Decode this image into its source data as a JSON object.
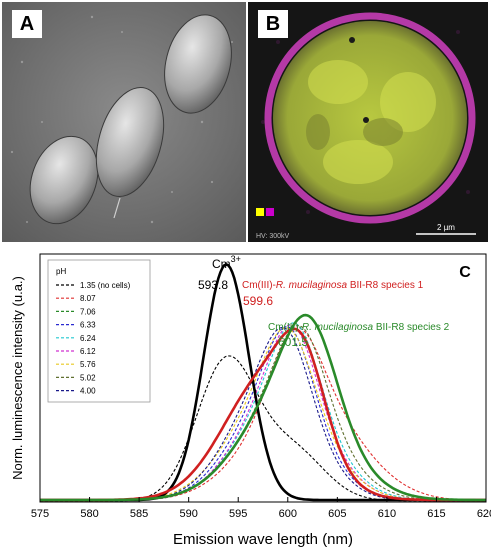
{
  "panels": {
    "a": {
      "letter": "A"
    },
    "b": {
      "letter": "B",
      "legend_swatches": [
        "#ffff00",
        "#cc00cc"
      ],
      "footer_text": "HV: 300kV",
      "scalebar_label": "2 µm"
    },
    "c": {
      "letter": "C"
    }
  },
  "colors": {
    "yellow_signal": "#c8d84a",
    "magenta_signal": "#d040c0"
  },
  "chart_data": {
    "type": "line",
    "xlabel": "Emission wave length (nm)",
    "ylabel": "Norm. luminescence intensity (u.a.)",
    "xlim": [
      575,
      620
    ],
    "ylim": [
      0,
      1.0
    ],
    "xticks": [
      575,
      580,
      585,
      590,
      595,
      600,
      605,
      610,
      615,
      620
    ],
    "legend": {
      "title": "pH",
      "position": "top-left",
      "entries": [
        {
          "label": "1.35 (no cells)",
          "color": "#000000"
        },
        {
          "label": "8.07",
          "color": "#e03030"
        },
        {
          "label": "7.06",
          "color": "#2a8a2a"
        },
        {
          "label": "6.33",
          "color": "#2a2ad0"
        },
        {
          "label": "6.24",
          "color": "#20c8d0"
        },
        {
          "label": "6.12",
          "color": "#d030d0"
        },
        {
          "label": "5.76",
          "color": "#e8c820"
        },
        {
          "label": "5.02",
          "color": "#607030"
        },
        {
          "label": "4.00",
          "color": "#1a1a8a"
        }
      ]
    },
    "annotations": [
      {
        "text": "Cm",
        "superscript": "3+",
        "value": "593.8",
        "color": "#000000"
      },
      {
        "text": "Cm(III)-",
        "italic": "R. mucilaginosa",
        "suffix": " BII-R8 species 1",
        "value": "599.6",
        "color": "#d02020"
      },
      {
        "text": "Cm(III)-",
        "italic": "R. mucilaginosa",
        "suffix": " BII-R8 species 2",
        "value": "601.5",
        "color": "#2a8a2a"
      }
    ],
    "series": [
      {
        "style": "solid",
        "color": "#000000",
        "width": 2.6,
        "components": [
          {
            "amp": 0.95,
            "center": 593.8,
            "sigma": 2.3
          }
        ],
        "baseline": 0.008
      },
      {
        "style": "solid",
        "color": "#d02020",
        "width": 2.6,
        "components": [
          {
            "amp": 0.5,
            "center": 598.0,
            "sigma": 4.4
          },
          {
            "amp": 0.3,
            "center": 601.6,
            "sigma": 2.2
          }
        ],
        "baseline": 0.008
      },
      {
        "style": "solid",
        "color": "#2a8a2a",
        "width": 2.6,
        "components": [
          {
            "amp": 0.44,
            "center": 600.4,
            "sigma": 4.8
          },
          {
            "amp": 0.33,
            "center": 602.3,
            "sigma": 2.6
          }
        ],
        "baseline": 0.008
      },
      {
        "style": "dashed",
        "color": "#000000",
        "width": 1.1,
        "components": [
          {
            "amp": 0.56,
            "center": 593.8,
            "sigma": 3.0
          },
          {
            "amp": 0.2,
            "center": 600.5,
            "sigma": 3.2
          }
        ],
        "baseline": 0.005
      },
      {
        "style": "dashed",
        "color": "#e03030",
        "width": 1.1,
        "components": [
          {
            "amp": 0.44,
            "center": 601.6,
            "sigma": 5.2
          },
          {
            "amp": 0.26,
            "center": 600.8,
            "sigma": 2.4
          }
        ],
        "baseline": 0.005
      },
      {
        "style": "dashed",
        "color": "#2a2ad0",
        "width": 1.1,
        "components": [
          {
            "amp": 0.42,
            "center": 598.8,
            "sigma": 4.3
          },
          {
            "amp": 0.3,
            "center": 600.3,
            "sigma": 2.3
          }
        ],
        "baseline": 0.005
      },
      {
        "style": "dashed",
        "color": "#20c8d0",
        "width": 1.1,
        "components": [
          {
            "amp": 0.43,
            "center": 599.6,
            "sigma": 4.5
          },
          {
            "amp": 0.3,
            "center": 600.9,
            "sigma": 2.3
          }
        ],
        "baseline": 0.005
      },
      {
        "style": "dashed",
        "color": "#d030d0",
        "width": 1.1,
        "components": [
          {
            "amp": 0.43,
            "center": 599.4,
            "sigma": 4.4
          },
          {
            "amp": 0.29,
            "center": 600.6,
            "sigma": 2.3
          }
        ],
        "baseline": 0.005
      },
      {
        "style": "dashed",
        "color": "#e8c820",
        "width": 1.1,
        "components": [
          {
            "amp": 0.44,
            "center": 598.9,
            "sigma": 4.6
          },
          {
            "amp": 0.27,
            "center": 600.2,
            "sigma": 2.4
          }
        ],
        "baseline": 0.005
      },
      {
        "style": "dashed",
        "color": "#607030",
        "width": 1.1,
        "components": [
          {
            "amp": 0.42,
            "center": 600.0,
            "sigma": 4.7
          },
          {
            "amp": 0.3,
            "center": 601.4,
            "sigma": 2.4
          }
        ],
        "baseline": 0.005
      },
      {
        "style": "dashed",
        "color": "#1a1a8a",
        "width": 1.1,
        "components": [
          {
            "amp": 0.46,
            "center": 598.4,
            "sigma": 4.2
          },
          {
            "amp": 0.26,
            "center": 600.0,
            "sigma": 2.3
          }
        ],
        "baseline": 0.005
      }
    ]
  }
}
